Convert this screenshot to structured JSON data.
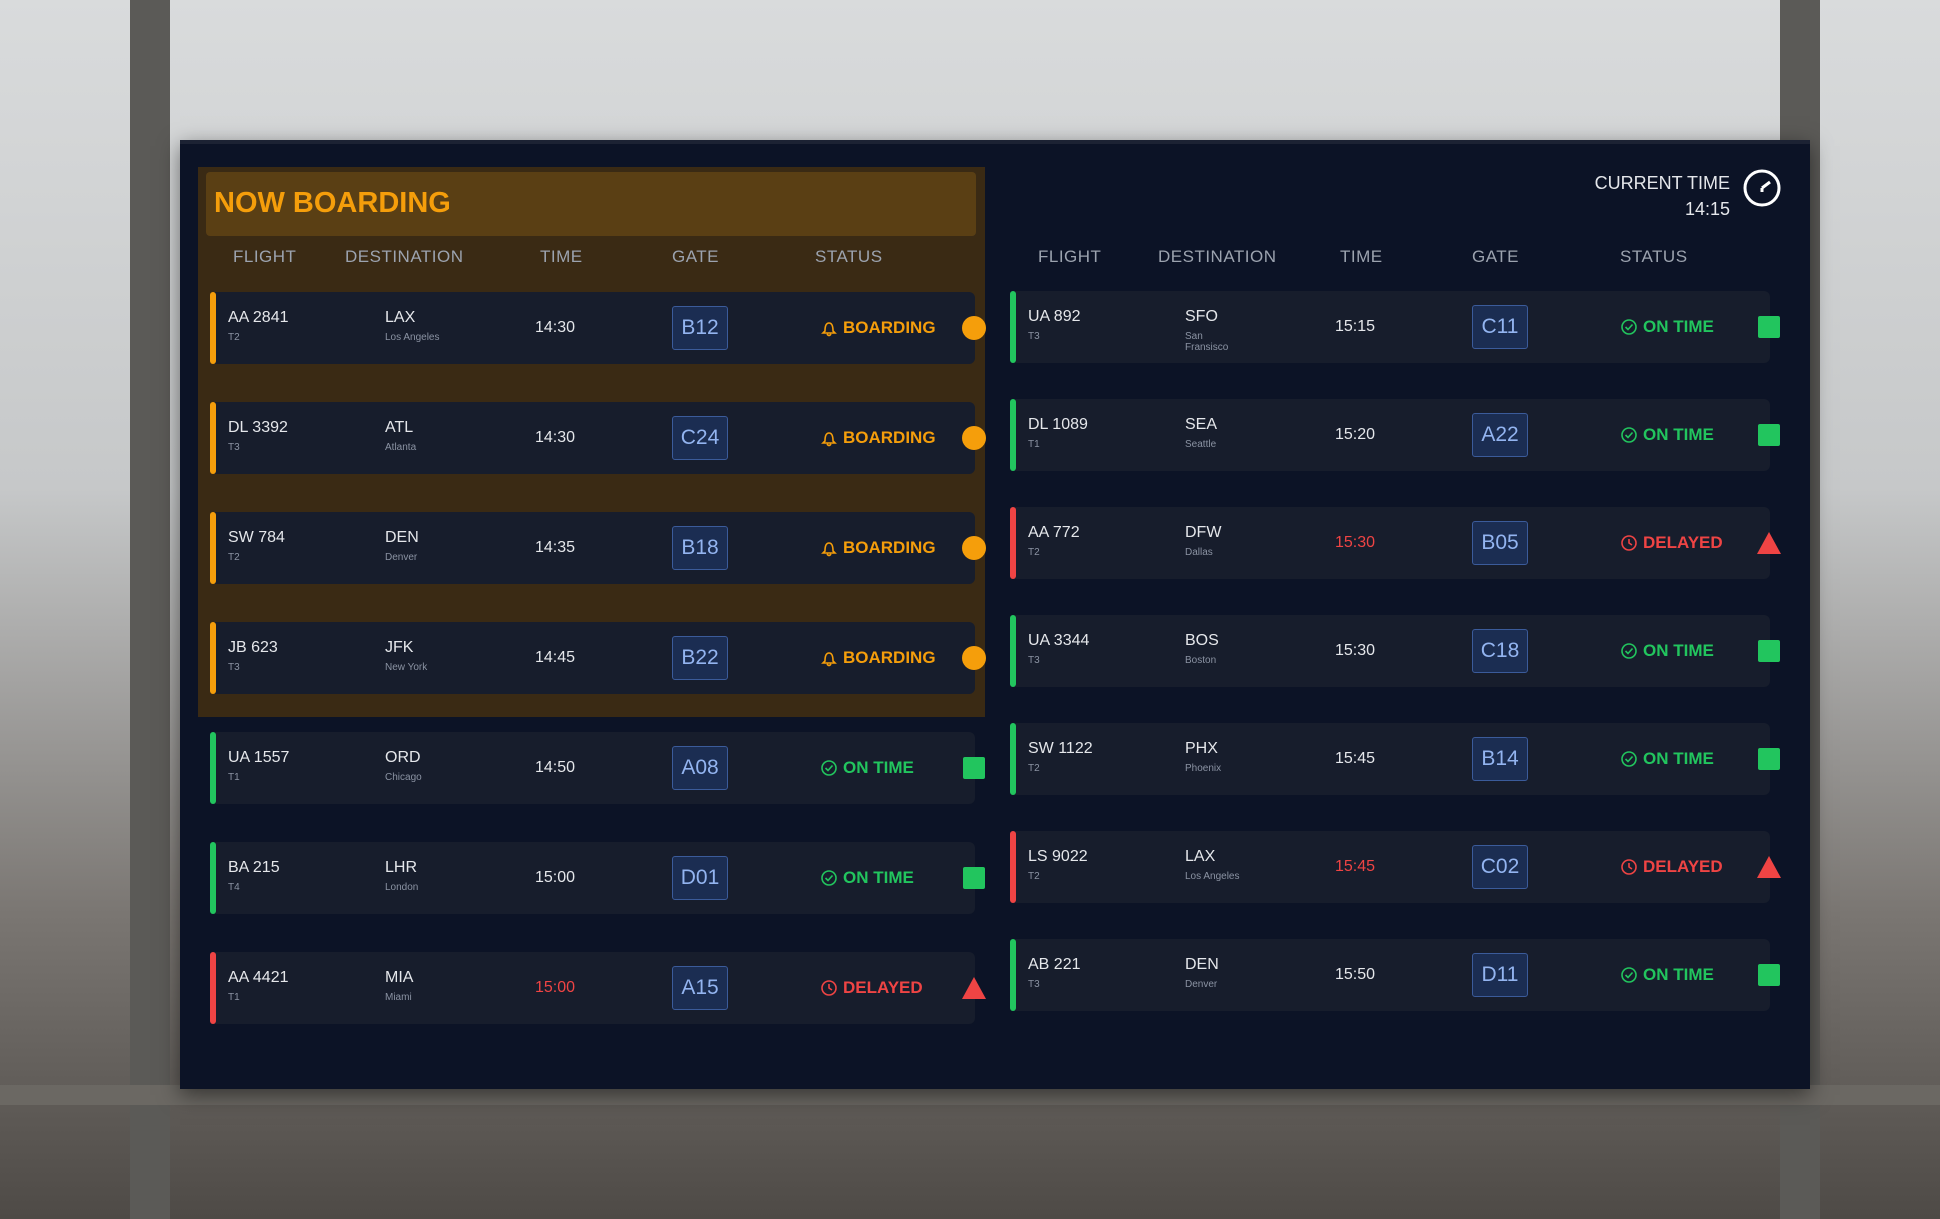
{
  "board": {
    "title": "NOW BOARDING",
    "current_time_label": "CURRENT TIME",
    "current_time": "14:15",
    "left": {
      "columns": [
        "FLIGHT",
        "DESTINATION",
        "TIME",
        "GATE",
        "STATUS"
      ],
      "boarding_rows": [
        {
          "flight": "AA 2841",
          "terminal": "T2",
          "code": "LAX",
          "city": "Los Angeles",
          "time": "14:30",
          "gate": "B12",
          "status": "BOARDING",
          "color": "#f59e0b",
          "indicator": "circle"
        },
        {
          "flight": "DL 3392",
          "terminal": "T3",
          "code": "ATL",
          "city": "Atlanta",
          "time": "14:30",
          "gate": "C24",
          "status": "BOARDING",
          "color": "#f59e0b",
          "indicator": "circle"
        },
        {
          "flight": "SW 784",
          "terminal": "T2",
          "code": "DEN",
          "city": "Denver",
          "time": "14:35",
          "gate": "B18",
          "status": "BOARDING",
          "color": "#f59e0b",
          "indicator": "circle"
        },
        {
          "flight": "JB 623",
          "terminal": "T3",
          "code": "JFK",
          "city": "New York",
          "time": "14:45",
          "gate": "B22",
          "status": "BOARDING",
          "color": "#f59e0b",
          "indicator": "circle"
        }
      ],
      "rows": [
        {
          "flight": "UA 1557",
          "terminal": "T1",
          "code": "ORD",
          "city": "Chicago",
          "time": "14:50",
          "gate": "A08",
          "status": "ON TIME",
          "color": "#22c55e",
          "indicator": "square"
        },
        {
          "flight": "BA 215",
          "terminal": "T4",
          "code": "LHR",
          "city": "London",
          "time": "15:00",
          "gate": "D01",
          "status": "ON TIME",
          "color": "#22c55e",
          "indicator": "square"
        },
        {
          "flight": "AA 4421",
          "terminal": "T1",
          "code": "MIA",
          "city": "Miami",
          "time": "15:00",
          "gate": "A15",
          "status": "DELAYED",
          "color": "#ef4444",
          "indicator": "triangle"
        }
      ]
    },
    "right": {
      "columns": [
        "FLIGHT",
        "DESTINATION",
        "TIME",
        "GATE",
        "STATUS"
      ],
      "rows": [
        {
          "flight": "UA 892",
          "terminal": "T3",
          "code": "SFO",
          "city": "San Fransisco",
          "time": "15:15",
          "gate": "C11",
          "status": "ON TIME",
          "color": "#22c55e",
          "indicator": "square"
        },
        {
          "flight": "DL 1089",
          "terminal": "T1",
          "code": "SEA",
          "city": "Seattle",
          "time": "15:20",
          "gate": "A22",
          "status": "ON TIME",
          "color": "#22c55e",
          "indicator": "square"
        },
        {
          "flight": "AA 772",
          "terminal": "T2",
          "code": "DFW",
          "city": "Dallas",
          "time": "15:30",
          "gate": "B05",
          "status": "DELAYED",
          "color": "#ef4444",
          "indicator": "triangle"
        },
        {
          "flight": "UA 3344",
          "terminal": "T3",
          "code": "BOS",
          "city": "Boston",
          "time": "15:30",
          "gate": "C18",
          "status": "ON TIME",
          "color": "#22c55e",
          "indicator": "square"
        },
        {
          "flight": "SW 1122",
          "terminal": "T2",
          "code": "PHX",
          "city": "Phoenix",
          "time": "15:45",
          "gate": "B14",
          "status": "ON TIME",
          "color": "#22c55e",
          "indicator": "square"
        },
        {
          "flight": "LS 9022",
          "terminal": "T2",
          "code": "LAX",
          "city": "Los Angeles",
          "time": "15:45",
          "gate": "C02",
          "status": "DELAYED",
          "color": "#ef4444",
          "indicator": "triangle"
        },
        {
          "flight": "AB 221",
          "terminal": "T3",
          "code": "DEN",
          "city": "Denver",
          "time": "15:50",
          "gate": "D11",
          "status": "ON TIME",
          "color": "#22c55e",
          "indicator": "square"
        }
      ]
    }
  }
}
